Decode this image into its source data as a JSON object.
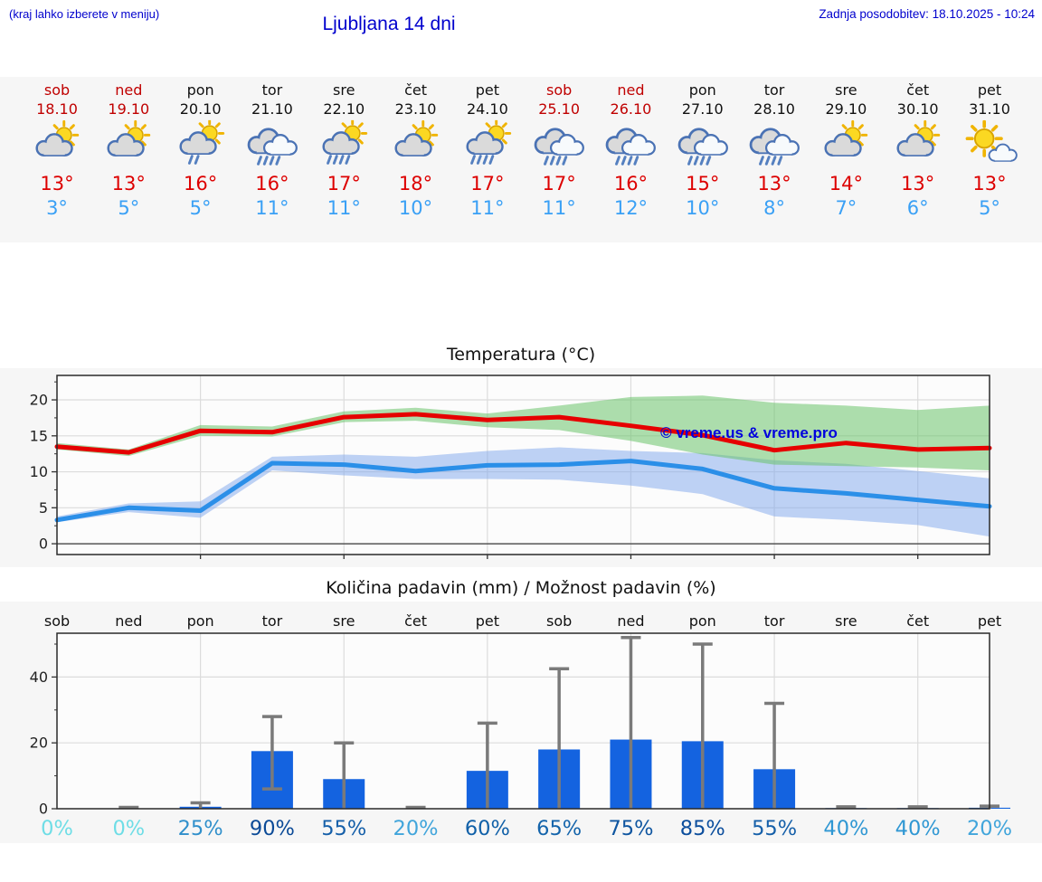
{
  "header": {
    "left_link": "(kraj lahko izberete v meniju)",
    "title": "Ljubljana 14 dni",
    "updated": "Zadnja posodobitev: 18.10.2025 - 10:24"
  },
  "colors": {
    "link_blue": "#0000cd",
    "weekend_red": "#c00000",
    "high_temp_red": "#dd0000",
    "low_temp_blue": "#3aa0f5",
    "section_bg": "#f6f6f6",
    "plot_bg": "#fcfcfc",
    "frame": "#2a2a2a",
    "grid": "#dcdcdc"
  },
  "days": [
    {
      "name": "sob",
      "date": "18.10",
      "weekend": true,
      "icon": "partly-cloudy",
      "high": "13",
      "low": "3"
    },
    {
      "name": "ned",
      "date": "19.10",
      "weekend": true,
      "icon": "partly-cloudy",
      "high": "13",
      "low": "5"
    },
    {
      "name": "pon",
      "date": "20.10",
      "weekend": false,
      "icon": "partly-cloudy-light-rain",
      "high": "16",
      "low": "5"
    },
    {
      "name": "tor",
      "date": "21.10",
      "weekend": false,
      "icon": "cloudy-rain",
      "high": "16",
      "low": "11"
    },
    {
      "name": "sre",
      "date": "22.10",
      "weekend": false,
      "icon": "partly-cloudy-rain",
      "high": "17",
      "low": "11"
    },
    {
      "name": "čet",
      "date": "23.10",
      "weekend": false,
      "icon": "partly-cloudy",
      "high": "18",
      "low": "10"
    },
    {
      "name": "pet",
      "date": "24.10",
      "weekend": false,
      "icon": "partly-cloudy-rain",
      "high": "17",
      "low": "11"
    },
    {
      "name": "sob",
      "date": "25.10",
      "weekend": true,
      "icon": "cloudy-rain",
      "high": "17",
      "low": "11"
    },
    {
      "name": "ned",
      "date": "26.10",
      "weekend": true,
      "icon": "cloudy-rain",
      "high": "16",
      "low": "12"
    },
    {
      "name": "pon",
      "date": "27.10",
      "weekend": false,
      "icon": "cloudy-rain",
      "high": "15",
      "low": "10"
    },
    {
      "name": "tor",
      "date": "28.10",
      "weekend": false,
      "icon": "cloudy-rain",
      "high": "13",
      "low": "8"
    },
    {
      "name": "sre",
      "date": "29.10",
      "weekend": false,
      "icon": "partly-cloudy",
      "high": "14",
      "low": "7"
    },
    {
      "name": "čet",
      "date": "30.10",
      "weekend": false,
      "icon": "partly-cloudy",
      "high": "13",
      "low": "6"
    },
    {
      "name": "pet",
      "date": "31.10",
      "weekend": false,
      "icon": "mostly-sunny",
      "high": "13",
      "low": "5"
    }
  ],
  "chart_data": [
    {
      "type": "line",
      "title": "Temperatura (°C)",
      "categories": [
        "sob",
        "ned",
        "pon",
        "tor",
        "sre",
        "čet",
        "pet",
        "sob",
        "ned",
        "pon",
        "tor",
        "sre",
        "čet",
        "pet"
      ],
      "ylim": [
        -1.5,
        23.4
      ],
      "yticks": [
        0,
        5,
        10,
        15,
        20
      ],
      "grid": true,
      "watermark": "© vreme.us & vreme.pro",
      "series": [
        {
          "name": "max temperatura",
          "color": "#e60000",
          "values": [
            13.5,
            12.7,
            15.7,
            15.5,
            17.6,
            18.0,
            17.2,
            17.6,
            16.4,
            15.1,
            13.0,
            14.0,
            13.1,
            13.3
          ]
        },
        {
          "name": "min temperatura",
          "color": "#2b8fe8",
          "values": [
            3.3,
            5.0,
            4.6,
            11.2,
            11.0,
            10.1,
            10.9,
            11.0,
            11.5,
            10.4,
            7.7,
            7.0,
            6.1,
            5.2
          ]
        }
      ],
      "bands": [
        {
          "name": "min-range",
          "color": "rgba(125,165,235,0.5)",
          "upper": [
            3.8,
            5.6,
            5.9,
            12.1,
            12.4,
            12.1,
            12.9,
            13.4,
            12.9,
            12.6,
            11.6,
            11.1,
            10.1,
            9.1
          ],
          "lower": [
            3.0,
            4.4,
            3.6,
            10.2,
            9.5,
            9.0,
            9.0,
            8.9,
            8.1,
            6.9,
            3.8,
            3.3,
            2.6,
            1.0
          ]
        },
        {
          "name": "max-range",
          "color": "rgba(105,195,105,0.55)",
          "upper": [
            14.0,
            13.1,
            16.5,
            16.3,
            18.4,
            18.9,
            18.1,
            19.2,
            20.4,
            20.6,
            19.6,
            19.2,
            18.6,
            19.2
          ],
          "lower": [
            13.1,
            12.2,
            15.0,
            14.9,
            16.9,
            17.1,
            16.2,
            15.8,
            14.3,
            12.4,
            11.0,
            10.8,
            10.6,
            10.2
          ]
        }
      ]
    },
    {
      "type": "bar",
      "title": "Količina padavin (mm) / Možnost padavin (%)",
      "categories": [
        "sob",
        "ned",
        "pon",
        "tor",
        "sre",
        "čet",
        "pet",
        "sob",
        "ned",
        "pon",
        "tor",
        "sre",
        "čet",
        "pet"
      ],
      "values": [
        0,
        0,
        0.6,
        17.5,
        9,
        0,
        11.5,
        18,
        21,
        20.5,
        12,
        0.2,
        0.2,
        0.3
      ],
      "error_low": [
        0,
        0,
        0,
        6,
        0,
        0,
        0,
        0,
        0,
        0,
        0,
        0,
        0,
        0
      ],
      "error_high": [
        0,
        0.4,
        1.8,
        28,
        20,
        0.4,
        26,
        42.5,
        52,
        50,
        32,
        0.6,
        0.6,
        0.8
      ],
      "bar_color": "#1463e0",
      "error_color": "#7a7a7a",
      "ylim": [
        0,
        53.3
      ],
      "yticks": [
        0,
        20,
        40
      ],
      "grid": true,
      "percent_labels": [
        "0%",
        "0%",
        "25%",
        "90%",
        "55%",
        "20%",
        "60%",
        "65%",
        "75%",
        "85%",
        "55%",
        "40%",
        "40%",
        "20%"
      ],
      "percent_colors": [
        "#6edde6",
        "#6edde6",
        "#2f8fcb",
        "#0b4a97",
        "#155fa9",
        "#41a5db",
        "#1060a8",
        "#1464ab",
        "#0e55a0",
        "#0c4e9d",
        "#155fa9",
        "#2f97d3",
        "#2f97d3",
        "#41a5db"
      ]
    }
  ]
}
